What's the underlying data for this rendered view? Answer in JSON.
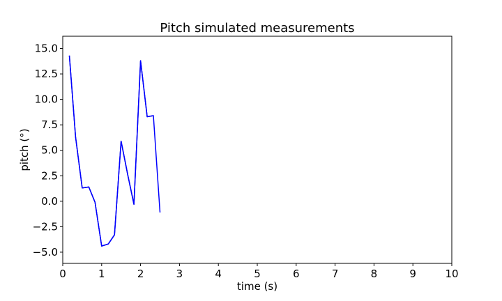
{
  "chart_data": {
    "type": "line",
    "title": "Pitch simulated measurements",
    "xlabel": "time (s)",
    "ylabel": "pitch (°)",
    "xlim": [
      0,
      10
    ],
    "ylim": [
      -6.1,
      16.2
    ],
    "xticks": [
      0,
      1,
      2,
      3,
      4,
      5,
      6,
      7,
      8,
      9,
      10
    ],
    "xtick_labels": [
      "0",
      "1",
      "2",
      "3",
      "4",
      "5",
      "6",
      "7",
      "8",
      "9",
      "10"
    ],
    "yticks": [
      -5.0,
      -2.5,
      0.0,
      2.5,
      5.0,
      7.5,
      10.0,
      12.5,
      15.0
    ],
    "ytick_labels": [
      "−5.0",
      "−2.5",
      "0.0",
      "2.5",
      "5.0",
      "7.5",
      "10.0",
      "12.5",
      "15.0"
    ],
    "grid": false,
    "series": [
      {
        "color": "#0000cc",
        "x": [
          0.17,
          0.33,
          0.5,
          0.67,
          0.83,
          1.0,
          1.17,
          1.33,
          1.5,
          1.67,
          1.83,
          2.0,
          2.17,
          2.33
        ],
        "y": [
          14.3,
          6.3,
          1.3,
          1.4,
          -0.1,
          -4.4,
          -4.2,
          -3.3,
          5.9,
          2.6,
          -0.3,
          13.8,
          8.3,
          8.4
        ]
      },
      {
        "color": "#0000ff",
        "x": [
          0.17,
          0.33,
          0.5,
          0.67,
          0.83,
          1.0,
          1.17,
          1.33,
          1.5,
          1.67,
          1.83,
          2.0,
          2.17,
          2.33,
          2.5
        ],
        "y": [
          14.3,
          6.3,
          1.3,
          1.4,
          -0.1,
          -4.4,
          -4.2,
          -3.3,
          5.9,
          2.6,
          -0.3,
          13.8,
          8.3,
          8.4,
          -1.1
        ]
      }
    ]
  }
}
